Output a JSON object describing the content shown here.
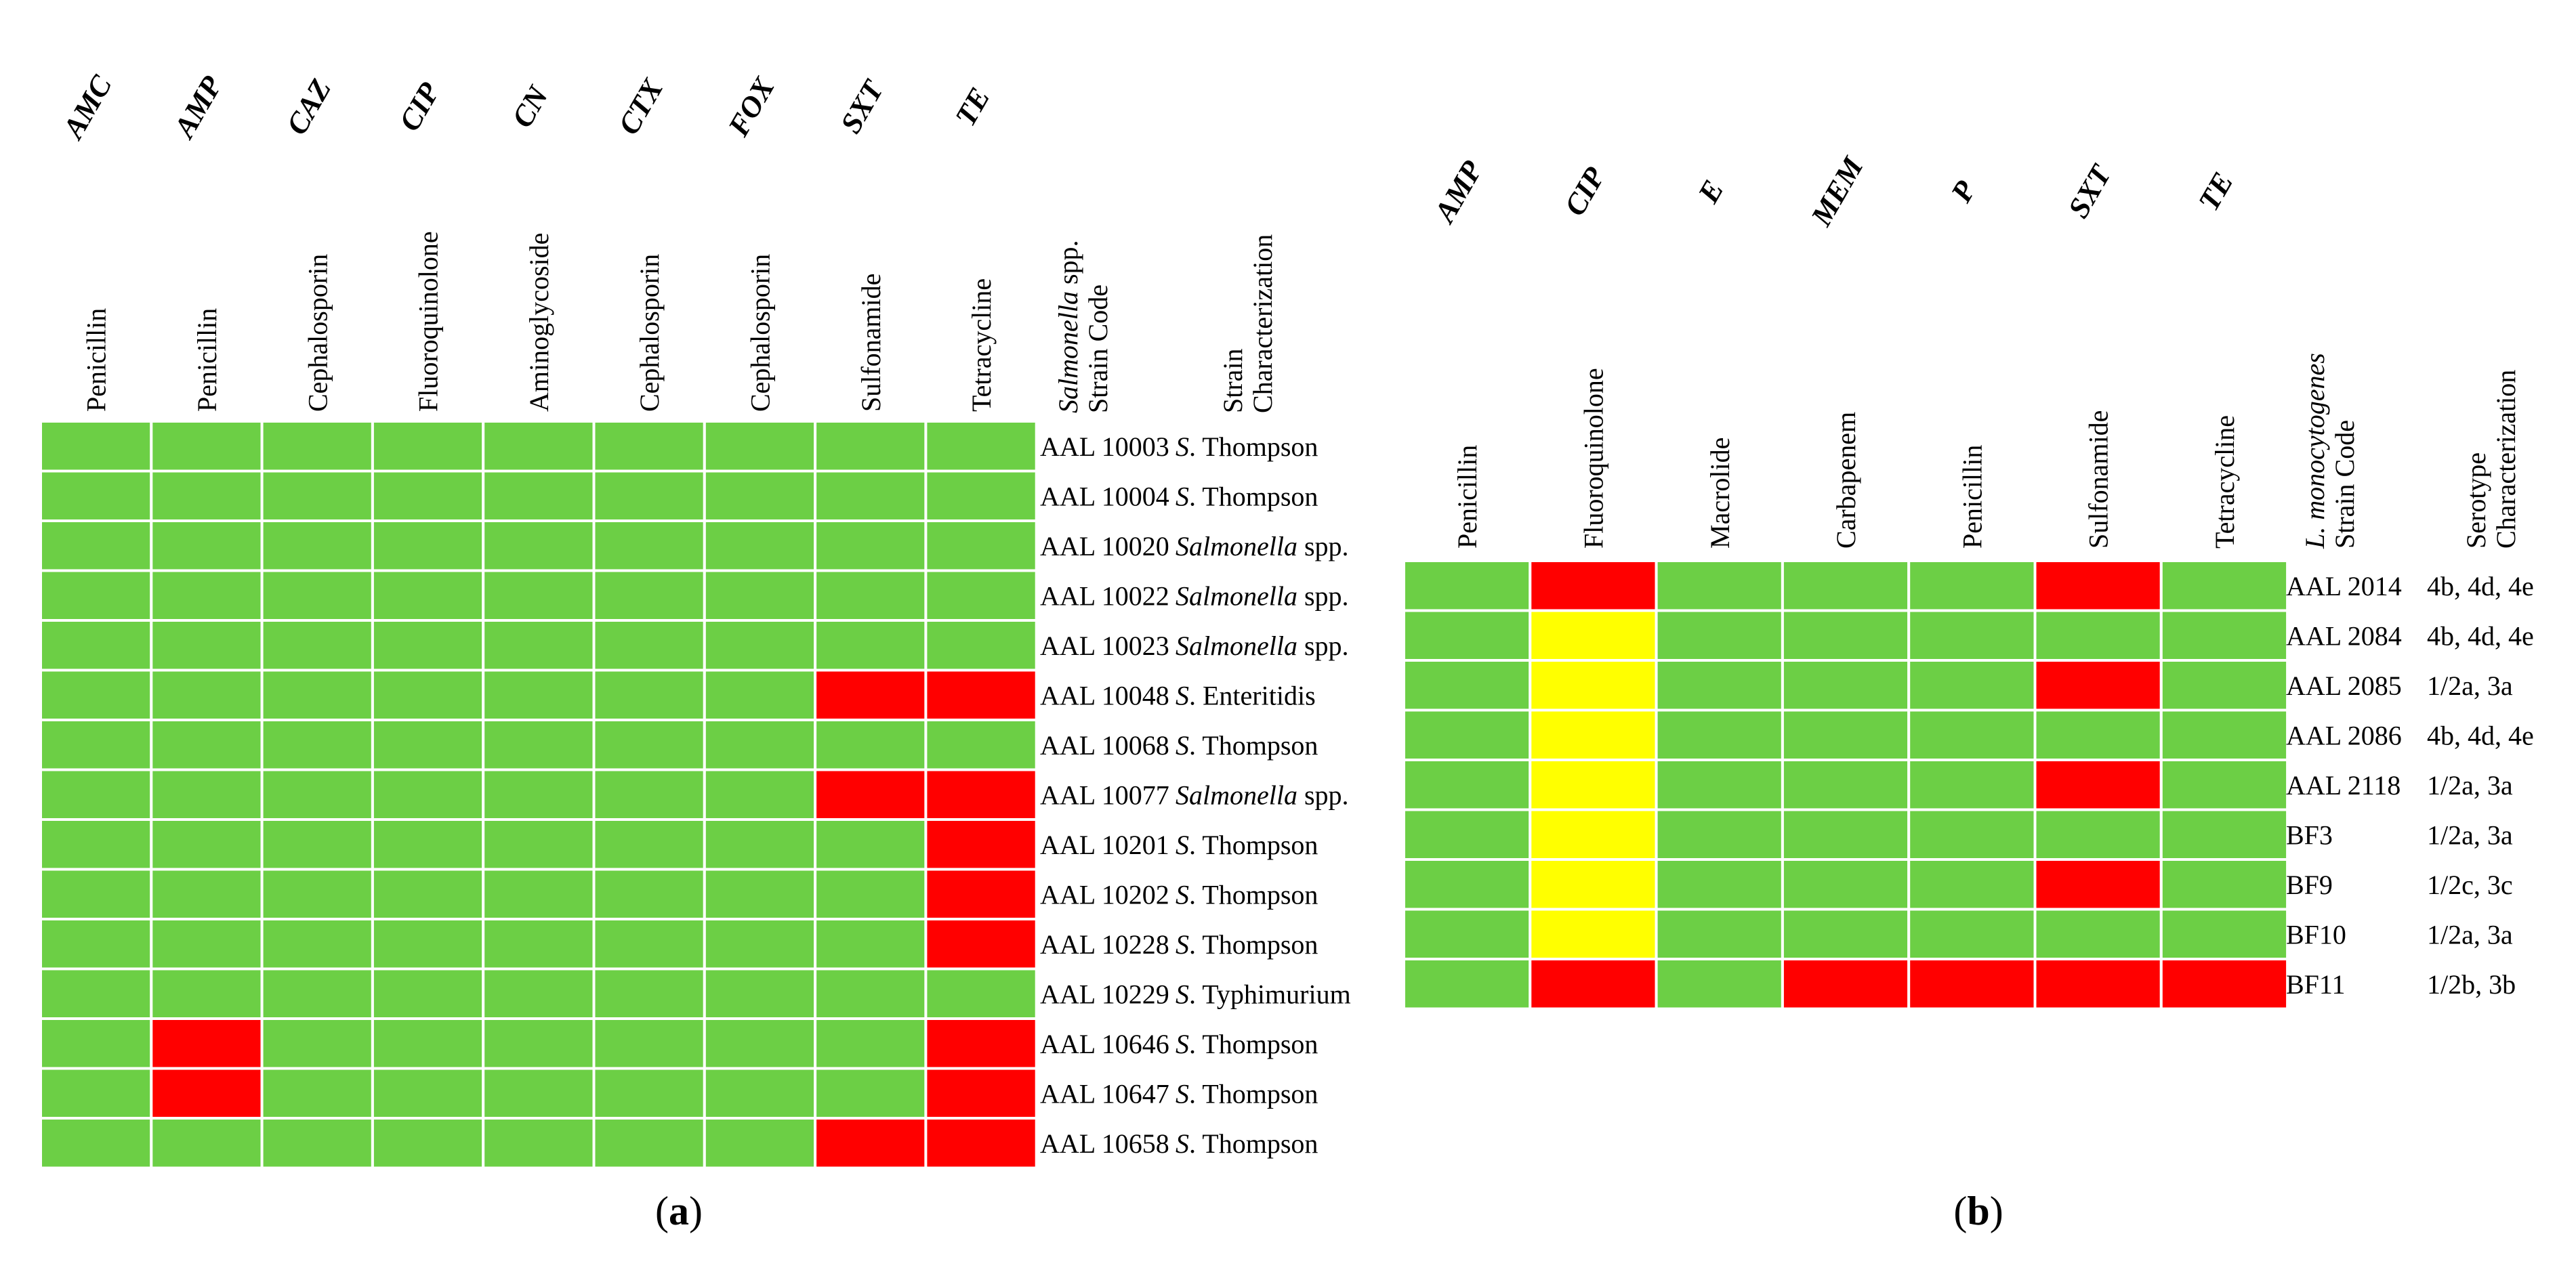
{
  "chart_data": [
    {
      "type": "heatmap",
      "panel_label": "a",
      "columns": [
        {
          "abbr": "AMC",
          "class": "Penicillin"
        },
        {
          "abbr": "AMP",
          "class": "Penicillin"
        },
        {
          "abbr": "CAZ",
          "class": "Cephalosporin"
        },
        {
          "abbr": "CIP",
          "class": "Fluoroquinolone"
        },
        {
          "abbr": "CN",
          "class": "Aminoglycoside"
        },
        {
          "abbr": "CTX",
          "class": "Cephalosporin"
        },
        {
          "abbr": "FOX",
          "class": "Cephalosporin"
        },
        {
          "abbr": "SXT",
          "class": "Sulfonamide"
        },
        {
          "abbr": "TE",
          "class": "Tetracycline"
        }
      ],
      "code_header": {
        "line1_italic": "Salmonella",
        "line1_rest": " spp.",
        "line2": "Strain Code"
      },
      "char_header": {
        "line1": "Strain",
        "line2": "Characterization"
      },
      "rows": [
        {
          "code": "AAL 10003",
          "char_italic": "S",
          "char_rest": ". Thompson",
          "values": [
            "S",
            "S",
            "S",
            "S",
            "S",
            "S",
            "S",
            "S",
            "S"
          ]
        },
        {
          "code": "AAL 10004",
          "char_italic": "S",
          "char_rest": ". Thompson",
          "values": [
            "S",
            "S",
            "S",
            "S",
            "S",
            "S",
            "S",
            "S",
            "S"
          ]
        },
        {
          "code": "AAL 10020",
          "char_italic": "Salmonella",
          "char_rest": " spp.",
          "values": [
            "S",
            "S",
            "S",
            "S",
            "S",
            "S",
            "S",
            "S",
            "S"
          ]
        },
        {
          "code": "AAL 10022",
          "char_italic": "Salmonella",
          "char_rest": " spp.",
          "values": [
            "S",
            "S",
            "S",
            "S",
            "S",
            "S",
            "S",
            "S",
            "S"
          ]
        },
        {
          "code": "AAL 10023",
          "char_italic": "Salmonella",
          "char_rest": " spp.",
          "values": [
            "S",
            "S",
            "S",
            "S",
            "S",
            "S",
            "S",
            "S",
            "S"
          ]
        },
        {
          "code": "AAL 10048",
          "char_italic": "S",
          "char_rest": ". Enteritidis",
          "values": [
            "S",
            "S",
            "S",
            "S",
            "S",
            "S",
            "S",
            "R",
            "R"
          ]
        },
        {
          "code": "AAL 10068",
          "char_italic": "S",
          "char_rest": ". Thompson",
          "values": [
            "S",
            "S",
            "S",
            "S",
            "S",
            "S",
            "S",
            "S",
            "S"
          ]
        },
        {
          "code": "AAL 10077",
          "char_italic": "Salmonella",
          "char_rest": " spp.",
          "values": [
            "S",
            "S",
            "S",
            "S",
            "S",
            "S",
            "S",
            "R",
            "R"
          ]
        },
        {
          "code": "AAL 10201",
          "char_italic": "S",
          "char_rest": ". Thompson",
          "values": [
            "S",
            "S",
            "S",
            "S",
            "S",
            "S",
            "S",
            "S",
            "R"
          ]
        },
        {
          "code": "AAL 10202",
          "char_italic": "S",
          "char_rest": ". Thompson",
          "values": [
            "S",
            "S",
            "S",
            "S",
            "S",
            "S",
            "S",
            "S",
            "R"
          ]
        },
        {
          "code": "AAL 10228",
          "char_italic": "S",
          "char_rest": ". Thompson",
          "values": [
            "S",
            "S",
            "S",
            "S",
            "S",
            "S",
            "S",
            "S",
            "R"
          ]
        },
        {
          "code": "AAL 10229",
          "char_italic": "S",
          "char_rest": ". Typhimurium",
          "values": [
            "S",
            "S",
            "S",
            "S",
            "S",
            "S",
            "S",
            "S",
            "S"
          ]
        },
        {
          "code": "AAL 10646",
          "char_italic": "S",
          "char_rest": ". Thompson",
          "values": [
            "S",
            "R",
            "S",
            "S",
            "S",
            "S",
            "S",
            "S",
            "R"
          ]
        },
        {
          "code": "AAL 10647",
          "char_italic": "S",
          "char_rest": ". Thompson",
          "values": [
            "S",
            "R",
            "S",
            "S",
            "S",
            "S",
            "S",
            "S",
            "R"
          ]
        },
        {
          "code": "AAL 10658",
          "char_italic": "S",
          "char_rest": ". Thompson",
          "values": [
            "S",
            "S",
            "S",
            "S",
            "S",
            "S",
            "S",
            "R",
            "R"
          ]
        }
      ]
    },
    {
      "type": "heatmap",
      "panel_label": "b",
      "columns": [
        {
          "abbr": "AMP",
          "class": "Penicillin"
        },
        {
          "abbr": "CIP",
          "class": "Fluoroquinolone"
        },
        {
          "abbr": "E",
          "class": "Macrolide"
        },
        {
          "abbr": "MEM",
          "class": "Carbapenem"
        },
        {
          "abbr": "P",
          "class": "Penicillin"
        },
        {
          "abbr": "SXT",
          "class": "Sulfonamide"
        },
        {
          "abbr": "TE",
          "class": "Tetracycline"
        }
      ],
      "code_header": {
        "line1_italic": "L. monocytogenes",
        "line1_rest": "",
        "line2": "Strain Code"
      },
      "char_header": {
        "line1": "Serotype",
        "line2": "Characterization"
      },
      "rows": [
        {
          "code": "AAL 2014",
          "char": "4b, 4d, 4e",
          "values": [
            "S",
            "R",
            "S",
            "S",
            "S",
            "R",
            "S"
          ]
        },
        {
          "code": "AAL 2084",
          "char": "4b, 4d, 4e",
          "values": [
            "S",
            "I",
            "S",
            "S",
            "S",
            "S",
            "S"
          ]
        },
        {
          "code": "AAL 2085",
          "char": "1/2a, 3a",
          "values": [
            "S",
            "I",
            "S",
            "S",
            "S",
            "R",
            "S"
          ]
        },
        {
          "code": "AAL 2086",
          "char": "4b, 4d, 4e",
          "values": [
            "S",
            "I",
            "S",
            "S",
            "S",
            "S",
            "S"
          ]
        },
        {
          "code": "AAL 2118",
          "char": "1/2a, 3a",
          "values": [
            "S",
            "I",
            "S",
            "S",
            "S",
            "R",
            "S"
          ]
        },
        {
          "code": "BF3",
          "char": "1/2a, 3a",
          "values": [
            "S",
            "I",
            "S",
            "S",
            "S",
            "S",
            "S"
          ]
        },
        {
          "code": "BF9",
          "char": "1/2c, 3c",
          "values": [
            "S",
            "I",
            "S",
            "S",
            "S",
            "R",
            "S"
          ]
        },
        {
          "code": "BF10",
          "char": "1/2a, 3a",
          "values": [
            "S",
            "I",
            "S",
            "S",
            "S",
            "S",
            "S"
          ]
        },
        {
          "code": "BF11",
          "char": "1/2b, 3b",
          "values": [
            "S",
            "R",
            "S",
            "R",
            "R",
            "R",
            "R"
          ]
        }
      ]
    }
  ],
  "colors": {
    "S": "#6ccf45",
    "R": "#ff0000",
    "I": "#ffff00",
    "grid": "#ffffff"
  }
}
